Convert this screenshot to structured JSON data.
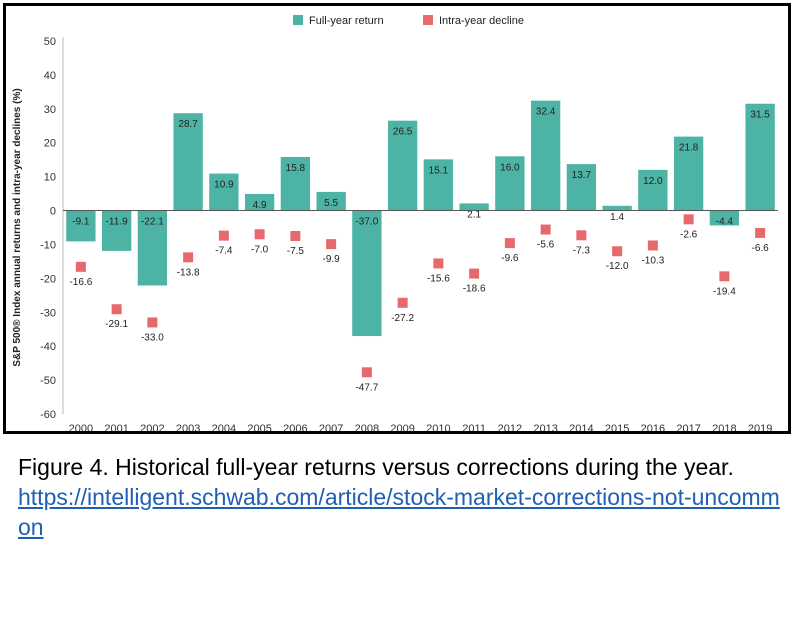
{
  "chart_data": {
    "type": "bar",
    "categories": [
      "2000",
      "2001",
      "2002",
      "2003",
      "2004",
      "2005",
      "2006",
      "2007",
      "2008",
      "2009",
      "2010",
      "2011",
      "2012",
      "2013",
      "2014",
      "2015",
      "2016",
      "2017",
      "2018",
      "2019"
    ],
    "series": [
      {
        "name": "Full-year return",
        "kind": "bar",
        "color": "#4db3a4",
        "values": [
          -9.1,
          -11.9,
          -22.1,
          28.7,
          10.9,
          4.9,
          15.8,
          5.5,
          -37.0,
          26.5,
          15.1,
          2.1,
          16.0,
          32.4,
          13.7,
          1.4,
          12.0,
          21.8,
          -4.4,
          31.5
        ]
      },
      {
        "name": "Intra-year decline",
        "kind": "marker",
        "color": "#e8696c",
        "values": [
          -16.6,
          -29.1,
          -33.0,
          -13.8,
          -7.4,
          -7.0,
          -7.5,
          -9.9,
          -47.7,
          -27.2,
          -15.6,
          -18.6,
          -9.6,
          -5.6,
          -7.3,
          -12.0,
          -10.3,
          -2.6,
          -19.4,
          -6.6
        ]
      }
    ],
    "ylabel": "S&P 500® Index annual returns and intra-year declines (%)",
    "ylim": [
      -60,
      50
    ],
    "yticks": [
      50,
      40,
      30,
      20,
      10,
      0,
      -10,
      -20,
      -30,
      -40,
      -50,
      -60
    ],
    "grid": false,
    "legend": "top-center"
  },
  "caption": {
    "text": "Figure 4.  Historical full-year returns versus corrections during the year.",
    "link": "https://intelligent.schwab.com/article/stock-market-corrections-not-uncommon"
  }
}
